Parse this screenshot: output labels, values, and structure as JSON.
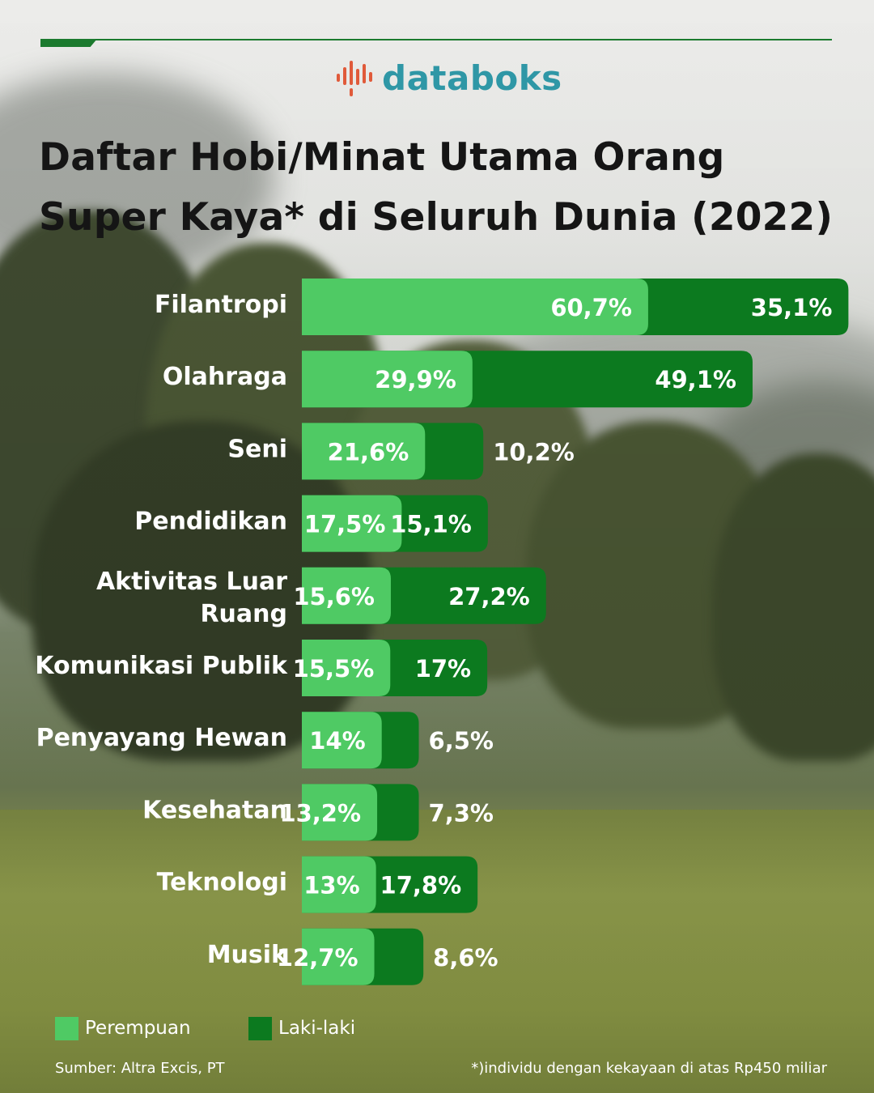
{
  "brand": {
    "name": "databoks"
  },
  "title": "Daftar Hobi/Minat Utama Orang Super Kaya* di Seluruh Dunia (2022)",
  "chart_data": {
    "type": "bar",
    "orientation": "horizontal",
    "stacked": true,
    "categories": [
      "Filantropi",
      "Olahraga",
      "Seni",
      "Pendidikan",
      "Aktivitas Luar Ruang",
      "Komunikasi Publik",
      "Penyayang Hewan",
      "Kesehatan",
      "Teknologi",
      "Musik"
    ],
    "series": [
      {
        "name": "Perempuan",
        "color": "#4fca64",
        "values": [
          60.7,
          29.9,
          21.6,
          17.5,
          15.6,
          15.5,
          14,
          13.2,
          13,
          12.7
        ],
        "labels": [
          "60,7%",
          "29,9%",
          "21,6%",
          "17,5%",
          "15,6%",
          "15,5%",
          "14%",
          "13,2%",
          "13%",
          "12,7%"
        ]
      },
      {
        "name": "Laki-laki",
        "color": "#0c7a1f",
        "values": [
          35.1,
          49.1,
          10.2,
          15.1,
          27.2,
          17,
          6.5,
          7.3,
          17.8,
          8.6
        ],
        "labels": [
          "35,1%",
          "49,1%",
          "10,2%",
          "15,1%",
          "27,2%",
          "17%",
          "6,5%",
          "7,3%",
          "17,8%",
          "8,6%"
        ]
      }
    ],
    "legend_position": "bottom-left",
    "grid": false
  },
  "legend": {
    "female_label": "Perempuan",
    "male_label": "Laki-laki"
  },
  "source": "Sumber: Altra Excis, PT",
  "note": "*)individu dengan kekayaan di atas Rp450 miliar"
}
